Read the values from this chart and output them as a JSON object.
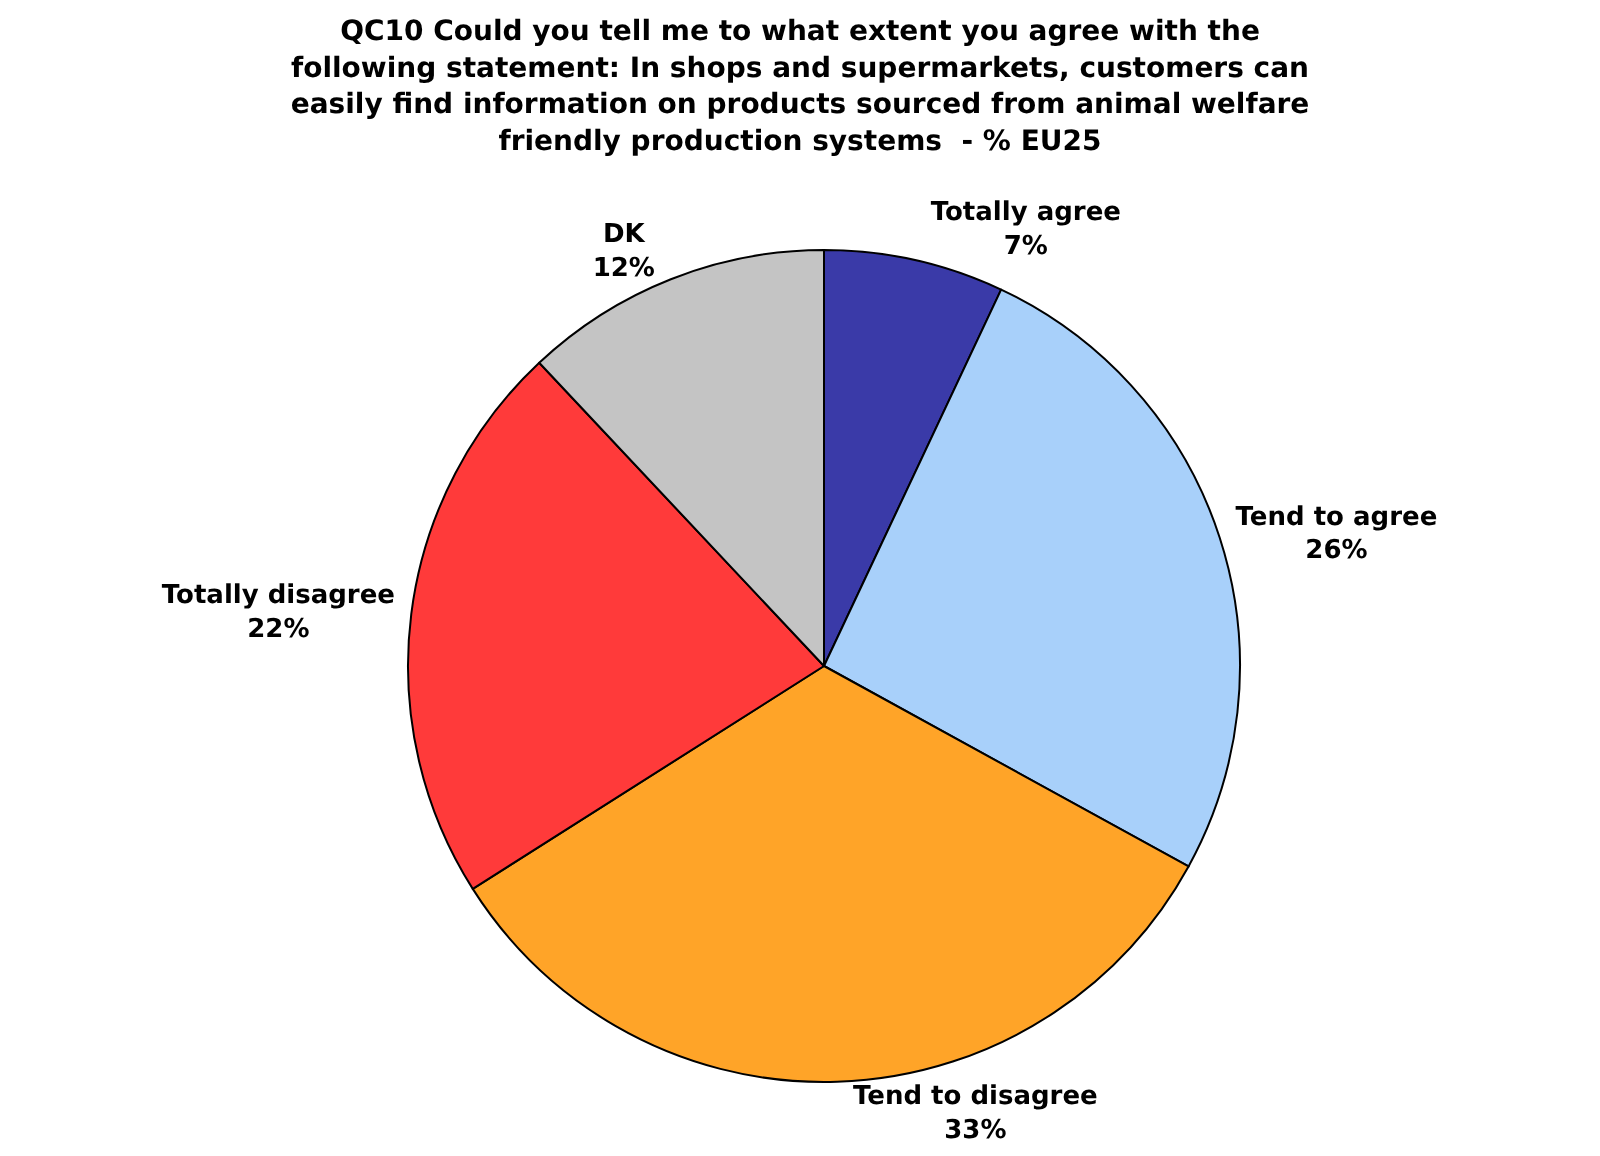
{
  "chart_data": {
    "type": "pie",
    "title": "QC10 Could you tell me to what extent you agree with the following statement: In shops and supermarkets, customers can easily find information on products sourced from animal welfare friendly production systems  - % EU25",
    "categories": [
      "Totally agree",
      "Tend to agree",
      "Tend to disagree",
      "Totally disagree",
      "DK"
    ],
    "values": [
      7,
      26,
      33,
      22,
      12
    ],
    "value_labels": [
      "7%",
      "26%",
      "33%",
      "22%",
      "12%"
    ],
    "colors": [
      "#3a3aa8",
      "#a8d0fa",
      "#ffa428",
      "#ff3a3a",
      "#c4c4c4"
    ],
    "legend": false
  }
}
